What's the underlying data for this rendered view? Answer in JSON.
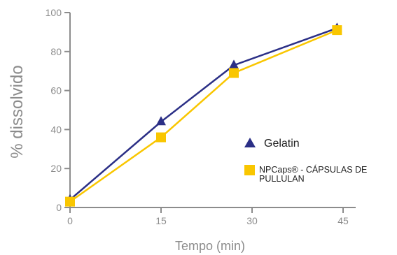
{
  "chart_data": {
    "type": "line",
    "xlabel": "Tempo (min)",
    "ylabel": "% dissolvido",
    "xlim": [
      0,
      45
    ],
    "ylim": [
      0,
      100
    ],
    "xticks": [
      0,
      15,
      30,
      45
    ],
    "yticks": [
      0,
      20,
      40,
      60,
      80,
      100
    ],
    "grid": false,
    "legend_position": "right",
    "series": [
      {
        "name": "Gelatin",
        "marker": "triangle",
        "color": "#2b2f86",
        "x": [
          0,
          15,
          27,
          44
        ],
        "values": [
          4,
          44,
          73,
          92
        ]
      },
      {
        "name": "NPCaps® - CÁPSULAS DE PULLULAN",
        "name_lines": [
          "NPCaps® - CÁPSULAS DE",
          "PULLULAN"
        ],
        "marker": "square",
        "color": "#f9c600",
        "x": [
          0,
          15,
          27,
          44
        ],
        "values": [
          3,
          36,
          69,
          91
        ]
      }
    ]
  }
}
